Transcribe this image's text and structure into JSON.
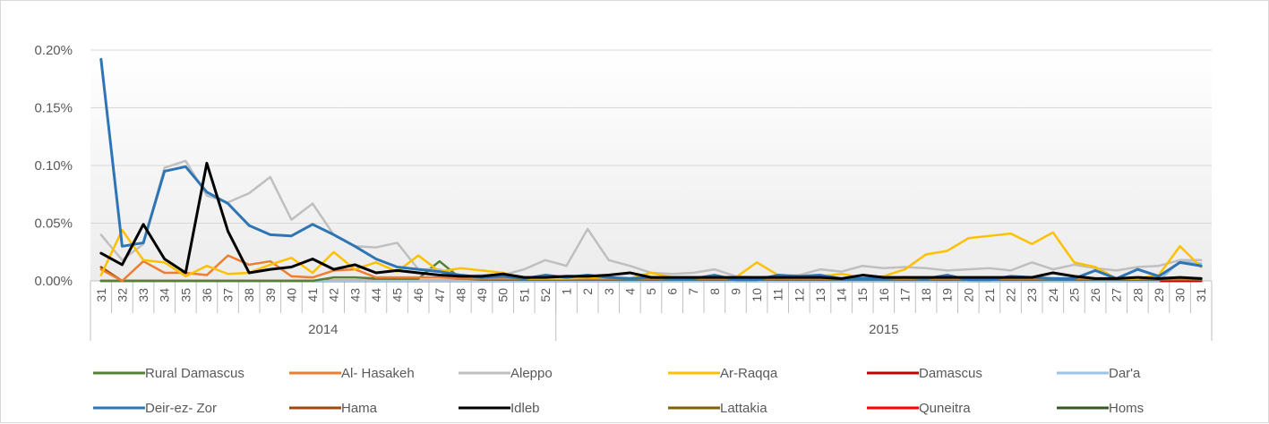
{
  "chart_data": {
    "type": "line",
    "ylim": [
      0,
      0.2
    ],
    "y_ticks": [
      "0.00%",
      "0.05%",
      "0.10%",
      "0.15%",
      "0.20%"
    ],
    "y_tick_values": [
      0,
      0.05,
      0.1,
      0.15,
      0.2
    ],
    "years": [
      {
        "label": "2014",
        "weeks": [
          "31",
          "32",
          "33",
          "34",
          "35",
          "36",
          "37",
          "38",
          "39",
          "40",
          "41",
          "42",
          "43",
          "44",
          "45",
          "46",
          "47",
          "48",
          "49",
          "50",
          "51",
          "52"
        ]
      },
      {
        "label": "2015",
        "weeks": [
          "1",
          "2",
          "3",
          "4",
          "5",
          "6",
          "7",
          "8",
          "9",
          "10",
          "11",
          "12",
          "13",
          "14",
          "15",
          "16",
          "17",
          "18",
          "19",
          "20",
          "21",
          "22",
          "23",
          "24",
          "25",
          "26",
          "27",
          "28",
          "29",
          "30",
          "31"
        ]
      }
    ],
    "grid": "horizontal",
    "legend_position": "bottom",
    "series": [
      {
        "name": "Rural Damascus",
        "color": "#548235",
        "values": [
          0,
          0,
          0,
          0,
          0,
          0,
          0,
          0,
          0,
          0,
          0,
          0.003,
          0.003,
          0.002,
          0.002,
          0.002,
          0.017,
          0.002,
          0.001,
          0.001,
          0.001,
          0.001,
          0.001,
          0.001,
          0.001,
          0.001,
          0.001,
          0.001,
          0.001,
          0.001,
          0.001,
          0.001,
          0.001,
          0.001,
          0.001,
          0.001,
          0.001,
          0.001,
          0.001,
          0.001,
          0.001,
          0.001,
          0.001,
          0.001,
          0.001,
          0.001,
          0.001,
          0.001,
          0.001,
          0.001,
          0.001,
          0.001,
          0.001
        ]
      },
      {
        "name": "Al- Hasakeh",
        "color": "#ED7D31",
        "values": [
          0.01,
          0,
          0.017,
          0.007,
          0.007,
          0.005,
          0.022,
          0.014,
          0.017,
          0.004,
          0.003,
          0.009,
          0.01,
          0.003,
          0.003,
          0.003,
          0.003,
          0.002,
          0.002,
          0.002,
          0.002,
          0.002,
          0.002,
          0.002,
          0.002,
          0.002,
          0.002,
          0.002,
          0.002,
          0.002,
          0.002,
          0.002,
          0.002,
          0.002,
          0.002,
          0.002,
          0.002,
          0.002,
          0.002,
          0.002,
          0.002,
          0.002,
          0.002,
          0.002,
          0.002,
          0.002,
          0.002,
          0.002,
          0.002,
          0.002,
          0.002,
          0.002,
          0.002
        ]
      },
      {
        "name": "Aleppo",
        "color": "#BFBFBF",
        "values": [
          0.04,
          0.018,
          0.032,
          0.098,
          0.104,
          0.074,
          0.068,
          0.076,
          0.09,
          0.053,
          0.067,
          0.04,
          0.03,
          0.029,
          0.033,
          0.01,
          0.01,
          0.004,
          0.005,
          0.005,
          0.01,
          0.018,
          0.013,
          0.045,
          0.018,
          0.013,
          0.007,
          0.006,
          0.007,
          0.01,
          0.004,
          0.003,
          0.004,
          0.005,
          0.01,
          0.008,
          0.013,
          0.011,
          0.012,
          0.011,
          0.009,
          0.01,
          0.011,
          0.009,
          0.016,
          0.01,
          0.014,
          0.011,
          0.009,
          0.012,
          0.013,
          0.018,
          0.018
        ]
      },
      {
        "name": "Ar-Raqqa",
        "color": "#FFC000",
        "values": [
          0.005,
          0.044,
          0.018,
          0.016,
          0.004,
          0.013,
          0.006,
          0.007,
          0.014,
          0.02,
          0.007,
          0.025,
          0.01,
          0.016,
          0.008,
          0.022,
          0.008,
          0.011,
          0.009,
          0.007,
          0.002,
          0.002,
          0.002,
          0.003,
          0.003,
          0.002,
          0.007,
          0.003,
          0.003,
          0.003,
          0.003,
          0.016,
          0.005,
          0.003,
          0.004,
          0.006,
          0.003,
          0.004,
          0.01,
          0.023,
          0.026,
          0.037,
          0.039,
          0.041,
          0.032,
          0.042,
          0.016,
          0.012,
          0.002,
          0.002,
          0.005,
          0.03,
          0.012
        ]
      },
      {
        "name": "Damascus",
        "color": "#C00000",
        "values": [
          0,
          0,
          0,
          0,
          0,
          0,
          0,
          0,
          0,
          0,
          0,
          0,
          0,
          0,
          0,
          0,
          0,
          0,
          0,
          0,
          0,
          0,
          0,
          0,
          0,
          0,
          0,
          0,
          0,
          0,
          0,
          0,
          0,
          0,
          0,
          0,
          0,
          0,
          0,
          0,
          0,
          0,
          0,
          0,
          0,
          0,
          0,
          0,
          0,
          0,
          0,
          0,
          0
        ]
      },
      {
        "name": "Dar'a",
        "color": "#9DC3E6",
        "values": [
          0,
          0,
          0,
          0,
          0,
          0,
          0,
          0,
          0,
          0,
          0,
          0,
          0,
          0,
          0,
          0,
          0,
          0,
          0,
          0,
          0,
          0,
          0,
          0,
          0,
          0,
          0,
          0,
          0,
          0,
          0,
          0,
          0,
          0,
          0,
          0,
          0,
          0,
          0,
          0,
          0,
          0,
          0,
          0,
          0,
          0,
          0,
          0,
          0,
          0,
          0,
          0.017,
          0.015
        ]
      },
      {
        "name": "Deir-ez- Zor",
        "color": "#2E75B6",
        "values": [
          0.192,
          0.03,
          0.033,
          0.095,
          0.099,
          0.077,
          0.067,
          0.048,
          0.04,
          0.039,
          0.049,
          0.04,
          0.03,
          0.019,
          0.012,
          0.01,
          0.008,
          0.005,
          0.003,
          0.004,
          0.002,
          0.005,
          0.003,
          0.005,
          0.003,
          0.002,
          0.003,
          0.002,
          0.002,
          0.005,
          0.001,
          0.001,
          0.005,
          0.004,
          0.005,
          0.002,
          0.002,
          0.002,
          0.003,
          0.002,
          0.005,
          0.001,
          0.001,
          0.004,
          0.003,
          0.002,
          0.002,
          0.009,
          0.002,
          0.01,
          0.004,
          0.016,
          0.013
        ]
      },
      {
        "name": "Hama",
        "color": "#9E480E",
        "values": [
          0.012,
          0,
          0,
          0,
          0,
          0,
          0,
          0,
          0,
          0,
          0,
          0,
          0,
          0,
          0,
          0,
          0,
          0,
          0,
          0,
          0,
          0,
          0,
          0,
          0,
          0,
          0,
          0,
          0,
          0,
          0,
          0,
          0,
          0,
          0,
          0,
          0,
          0,
          0,
          0,
          0,
          0,
          0,
          0,
          0,
          0,
          0,
          0,
          0,
          0,
          0,
          0,
          0
        ]
      },
      {
        "name": "Idleb",
        "color": "#000000",
        "values": [
          0.024,
          0.014,
          0.049,
          0.019,
          0.007,
          0.102,
          0.043,
          0.007,
          0.01,
          0.012,
          0.019,
          0.01,
          0.014,
          0.007,
          0.009,
          0.007,
          0.005,
          0.004,
          0.004,
          0.006,
          0.003,
          0.003,
          0.004,
          0.004,
          0.005,
          0.007,
          0.003,
          0.003,
          0.003,
          0.003,
          0.003,
          0.003,
          0.003,
          0.003,
          0.003,
          0.002,
          0.005,
          0.003,
          0.003,
          0.003,
          0.003,
          0.003,
          0.003,
          0.003,
          0.003,
          0.007,
          0.004,
          0.002,
          0.002,
          0.003,
          0.002,
          0.003,
          0.002
        ]
      },
      {
        "name": "Lattakia",
        "color": "#806000",
        "values": [
          0,
          0,
          0,
          0,
          0,
          0,
          0,
          0,
          0,
          0,
          0,
          0,
          0,
          0,
          0,
          0,
          0,
          0,
          0,
          0,
          0,
          0,
          0,
          0,
          0,
          0,
          0,
          0,
          0,
          0,
          0,
          0,
          0,
          0,
          0,
          0,
          0,
          0,
          0,
          0,
          0,
          0,
          0,
          0,
          0,
          0,
          0,
          0,
          0,
          0,
          0,
          0,
          0
        ]
      },
      {
        "name": "Quneitra",
        "color": "#FF0000",
        "values": [
          0,
          0,
          0,
          0,
          0,
          0,
          0,
          0,
          0,
          0,
          0,
          0,
          0,
          0,
          0,
          0,
          0,
          0,
          0,
          0,
          0,
          0,
          0,
          0,
          0,
          0,
          0,
          0,
          0,
          0,
          0,
          0,
          0,
          0,
          0,
          0,
          0,
          0,
          0,
          0,
          0,
          0,
          0,
          0,
          0,
          0,
          0,
          0,
          0,
          0,
          0,
          0,
          0
        ]
      },
      {
        "name": "Homs",
        "color": "#375623",
        "values": [
          0,
          0,
          0,
          0,
          0,
          0,
          0,
          0,
          0,
          0,
          0,
          0,
          0,
          0,
          0,
          0,
          0,
          0,
          0,
          0,
          0,
          0,
          0,
          0,
          0,
          0,
          0,
          0,
          0,
          0,
          0,
          0,
          0,
          0,
          0,
          0,
          0,
          0,
          0,
          0,
          0,
          0,
          0,
          0,
          0,
          0,
          0,
          0,
          0,
          0,
          0,
          0,
          0
        ]
      }
    ]
  }
}
